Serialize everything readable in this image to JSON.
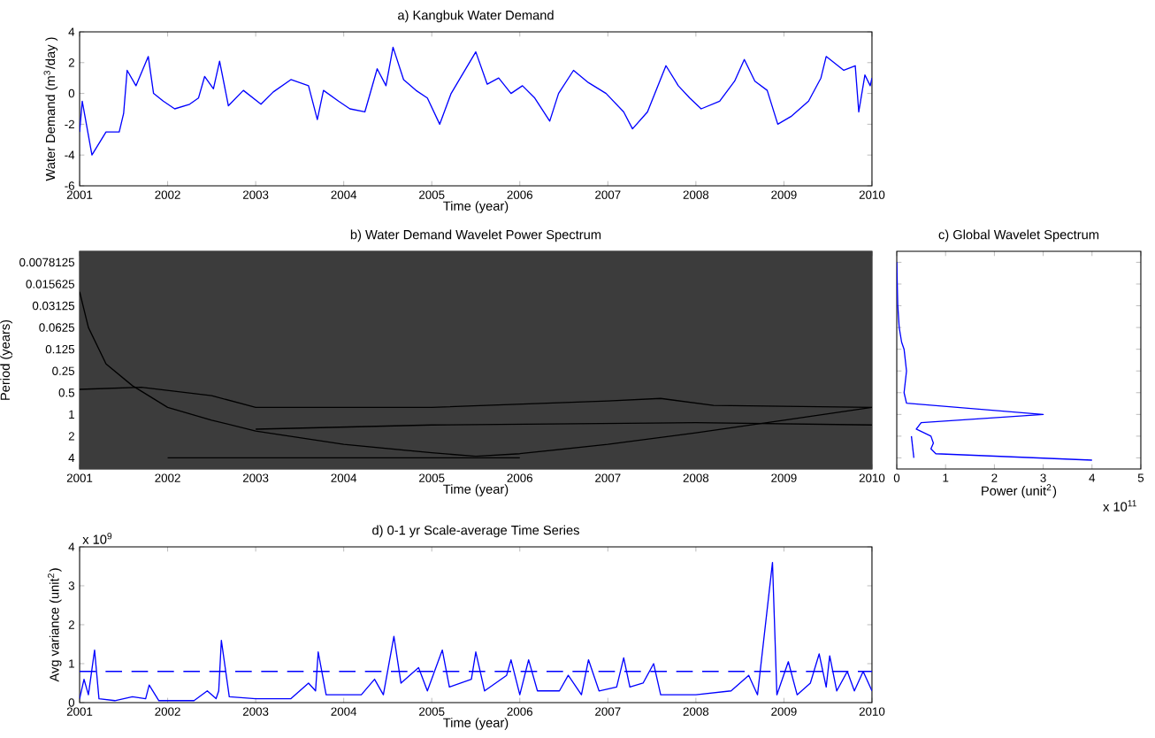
{
  "chart_data": [
    {
      "type": "line",
      "title": "a) Kangbuk Water Demand",
      "xlabel": "Time (year)",
      "ylabel": "Water Demand (m$^{3}$/day )",
      "xlim": [
        2001,
        2010
      ],
      "xticks": [
        2001,
        2002,
        2003,
        2004,
        2005,
        2006,
        2007,
        2008,
        2009,
        2010
      ],
      "ylim": [
        -6,
        4
      ],
      "yticks": [
        -6,
        -4,
        -2,
        0,
        2,
        4
      ],
      "series": [
        {
          "color": "#0000ff",
          "x": [
            2001.0,
            2001.03,
            2001.14,
            2001.3,
            2001.45,
            2001.5,
            2001.54,
            2001.64,
            2001.78,
            2001.84,
            2001.95,
            2002.08,
            2002.25,
            2002.35,
            2002.42,
            2002.52,
            2002.59,
            2002.69,
            2002.86,
            2003.06,
            2003.2,
            2003.4,
            2003.6,
            2003.7,
            2003.77,
            2003.94,
            2004.07,
            2004.24,
            2004.38,
            2004.48,
            2004.56,
            2004.68,
            2004.82,
            2004.95,
            2005.09,
            2005.22,
            2005.5,
            2005.63,
            2005.76,
            2005.9,
            2006.03,
            2006.17,
            2006.34,
            2006.44,
            2006.61,
            2006.78,
            2006.98,
            2007.18,
            2007.28,
            2007.45,
            2007.66,
            2007.8,
            2007.93,
            2008.06,
            2008.27,
            2008.44,
            2008.55,
            2008.67,
            2008.81,
            2008.93,
            2009.08,
            2009.28,
            2009.42,
            2009.48,
            2009.68,
            2009.81,
            2009.85,
            2009.92,
            2009.98,
            2010.0
          ],
          "values": [
            -2.5,
            -0.5,
            -4,
            -2.5,
            -2.5,
            -1.3,
            1.5,
            0.5,
            2.4,
            0,
            -0.5,
            -1.0,
            -0.7,
            -0.3,
            1.1,
            0.3,
            2.1,
            -0.8,
            0.2,
            -0.7,
            0.1,
            0.9,
            0.5,
            -1.7,
            0.2,
            -0.5,
            -1.0,
            -1.2,
            1.6,
            0.5,
            3.0,
            0.9,
            0.2,
            -0.3,
            -2.0,
            0.0,
            2.7,
            0.6,
            1.0,
            0.0,
            0.5,
            -0.3,
            -1.8,
            0.0,
            1.5,
            0.7,
            0.0,
            -1.2,
            -2.3,
            -1.2,
            1.8,
            0.5,
            -0.3,
            -1.0,
            -0.5,
            0.8,
            2.2,
            0.8,
            0.2,
            -2.0,
            -1.5,
            -0.5,
            1.0,
            2.4,
            1.5,
            1.8,
            -1.2,
            1.2,
            0.5,
            1.0
          ]
        }
      ]
    },
    {
      "type": "line",
      "title": "b) Water Demand Wavelet Power Spectrum",
      "xlabel": "Time (year)",
      "ylabel": "Period (years)",
      "log": "y",
      "xlim": [
        2001,
        2010
      ],
      "xticks": [
        2001,
        2002,
        2003,
        2004,
        2005,
        2006,
        2007,
        2008,
        2009,
        2010
      ],
      "ylim": [
        5.7,
        0.0055
      ],
      "yticks": [
        0.0078125,
        0.015625,
        0.03125,
        0.0625,
        0.125,
        0.25,
        0.5,
        1,
        2,
        4
      ],
      "bands": [
        {
          "axis": "y",
          "from": 0.0055,
          "to": 5.7,
          "color": "#3c3c3c"
        }
      ],
      "series": [
        {
          "color": "#000000",
          "x": [
            2001.0,
            2001.1,
            2001.3,
            2001.6,
            2002.0,
            2002.5,
            2003.0,
            2004.0,
            2005.0,
            2005.5,
            2006.0,
            2007.0,
            2008.0,
            2009.0,
            2010.0
          ],
          "values": [
            0.02,
            0.0625,
            0.2,
            0.4,
            0.8,
            1.2,
            1.7,
            2.6,
            3.4,
            3.8,
            3.5,
            2.6,
            1.8,
            1.2,
            0.8
          ]
        },
        {
          "color": "#000000",
          "x": [
            2001.0,
            2001.7,
            2002.5,
            2003.0,
            2005.0,
            2007.0,
            2007.6,
            2008.2,
            2010.0
          ],
          "values": [
            0.45,
            0.42,
            0.55,
            0.8,
            0.8,
            0.65,
            0.6,
            0.75,
            0.8
          ]
        },
        {
          "color": "#000000",
          "x": [
            2003.0,
            2005.0,
            2008.0,
            2010.0
          ],
          "values": [
            1.6,
            1.4,
            1.3,
            1.4
          ]
        },
        {
          "color": "#000000",
          "x": [
            2002.0,
            2006.0
          ],
          "values": [
            4,
            4
          ]
        }
      ]
    },
    {
      "type": "line",
      "title": "c) Global Wavelet Spectrum",
      "xlabel": "Power (unit$^{2}$)",
      "annotations": [
        "x 10$^{11}$"
      ],
      "log": "y",
      "tick_labels": "x",
      "xlim": [
        0,
        5
      ],
      "xticks": [
        0,
        1,
        2,
        3,
        4,
        5
      ],
      "ylim": [
        5.7,
        0.0055
      ],
      "yticks": [
        0.0078125,
        0.015625,
        0.03125,
        0.0625,
        0.125,
        0.25,
        0.5,
        1,
        2,
        4
      ],
      "series": [
        {
          "color": "#0000ff",
          "x": [
            0,
            0.02,
            0.05,
            0.1,
            0.15,
            0.2,
            0.15,
            0.2,
            3.0,
            0.5,
            0.4,
            0.7,
            0.75,
            0.7,
            0.8,
            4.0
          ],
          "values": [
            0.0078,
            0.03,
            0.0625,
            0.1,
            0.125,
            0.25,
            0.5,
            0.7,
            1.0,
            1.3,
            1.6,
            2.0,
            2.5,
            3.0,
            3.5,
            4.3
          ]
        },
        {
          "color": "#0000ff",
          "x": [
            0.3,
            0.35
          ],
          "values": [
            2.0,
            4.0
          ]
        }
      ]
    },
    {
      "type": "line",
      "title": "d) 0-1 yr Scale-average Time Series",
      "xlabel": "Time (year)",
      "ylabel": "Avg variance (unit$^{2}$)",
      "annotations": [
        "x 10$^{9}$"
      ],
      "xlim": [
        2001,
        2010
      ],
      "xticks": [
        2001,
        2002,
        2003,
        2004,
        2005,
        2006,
        2007,
        2008,
        2009,
        2010
      ],
      "ylim": [
        0,
        4
      ],
      "yticks": [
        0,
        1,
        2,
        3,
        4
      ],
      "ref_lines": [
        {
          "axis": "y",
          "value": 0.8,
          "color": "#0000ff",
          "line_style": "dashed"
        }
      ],
      "series": [
        {
          "color": "#0000ff",
          "x": [
            2001.0,
            2001.05,
            2001.1,
            2001.17,
            2001.22,
            2001.4,
            2001.6,
            2001.75,
            2001.79,
            2001.9,
            2002.3,
            2002.45,
            2002.55,
            2002.58,
            2002.61,
            2002.7,
            2003.0,
            2003.4,
            2003.6,
            2003.68,
            2003.71,
            2003.8,
            2004.2,
            2004.35,
            2004.45,
            2004.57,
            2004.65,
            2004.85,
            2004.95,
            2005.12,
            2005.2,
            2005.45,
            2005.5,
            2005.6,
            2005.85,
            2005.9,
            2006.0,
            2006.1,
            2006.2,
            2006.45,
            2006.55,
            2006.7,
            2006.78,
            2006.9,
            2007.1,
            2007.18,
            2007.25,
            2007.4,
            2007.52,
            2007.6,
            2008.0,
            2008.4,
            2008.6,
            2008.7,
            2008.87,
            2008.92,
            2009.05,
            2009.15,
            2009.3,
            2009.4,
            2009.48,
            2009.52,
            2009.6,
            2009.72,
            2009.8,
            2009.9,
            2010.0
          ],
          "values": [
            0.1,
            0.6,
            0.2,
            1.35,
            0.1,
            0.05,
            0.15,
            0.1,
            0.45,
            0.05,
            0.05,
            0.3,
            0.1,
            0.3,
            1.6,
            0.15,
            0.1,
            0.1,
            0.5,
            0.3,
            1.3,
            0.2,
            0.2,
            0.6,
            0.2,
            1.7,
            0.5,
            0.9,
            0.3,
            1.35,
            0.4,
            0.6,
            1.3,
            0.3,
            0.7,
            1.1,
            0.2,
            1.1,
            0.3,
            0.3,
            0.7,
            0.2,
            1.1,
            0.3,
            0.4,
            1.15,
            0.4,
            0.5,
            1.0,
            0.2,
            0.2,
            0.3,
            0.7,
            0.2,
            3.6,
            0.2,
            1.05,
            0.2,
            0.5,
            1.25,
            0.4,
            1.2,
            0.3,
            0.8,
            0.3,
            0.8,
            0.3
          ]
        }
      ]
    }
  ]
}
